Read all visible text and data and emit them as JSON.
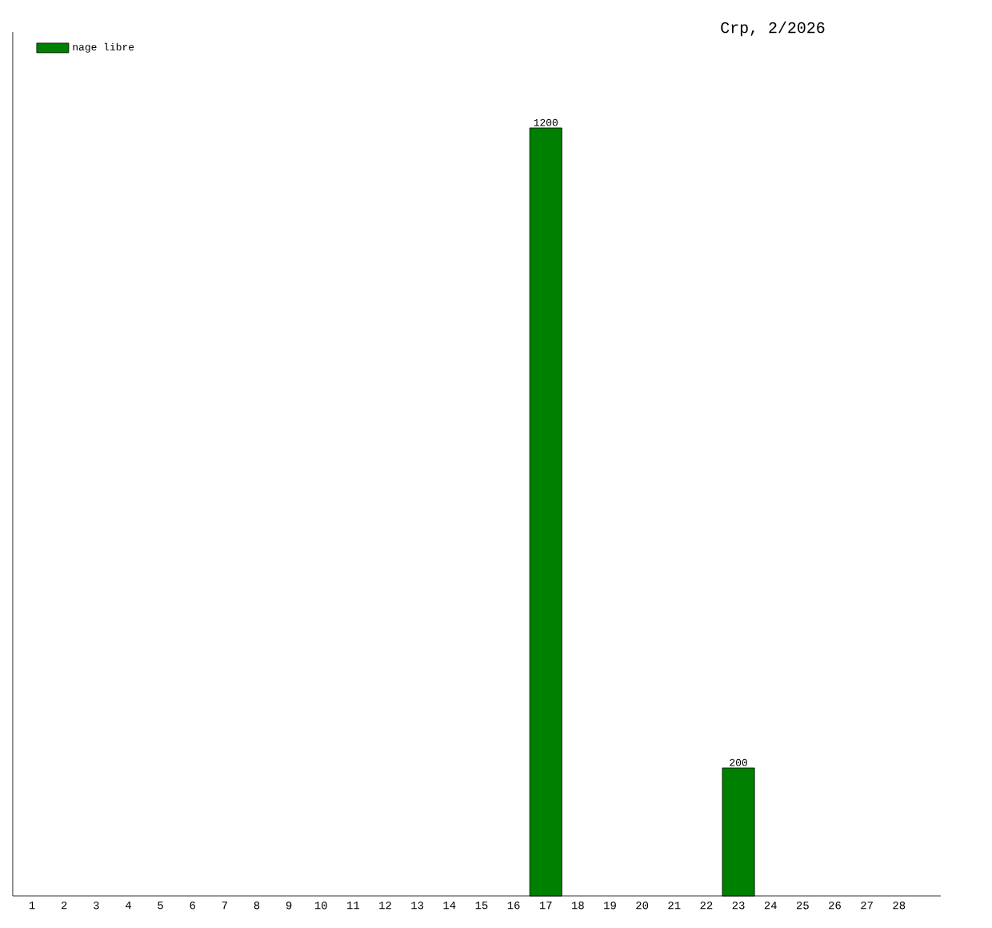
{
  "chart_data": {
    "type": "bar",
    "title": "Crp, 2/2026",
    "categories": [
      "1",
      "2",
      "3",
      "4",
      "5",
      "6",
      "7",
      "8",
      "9",
      "10",
      "11",
      "12",
      "13",
      "14",
      "15",
      "16",
      "17",
      "18",
      "19",
      "20",
      "21",
      "22",
      "23",
      "24",
      "25",
      "26",
      "27",
      "28"
    ],
    "series": [
      {
        "name": "nage libre",
        "color": "#008000",
        "values": [
          null,
          null,
          null,
          null,
          null,
          null,
          null,
          null,
          null,
          null,
          null,
          null,
          null,
          null,
          null,
          null,
          1200,
          null,
          null,
          null,
          null,
          null,
          200,
          null,
          null,
          null,
          null,
          null
        ],
        "value_labels": [
          null,
          null,
          null,
          null,
          null,
          null,
          null,
          null,
          null,
          null,
          null,
          null,
          null,
          null,
          null,
          null,
          "1200",
          null,
          null,
          null,
          null,
          null,
          "200",
          null,
          null,
          null,
          null,
          null
        ]
      }
    ],
    "legend": "top left"
  }
}
